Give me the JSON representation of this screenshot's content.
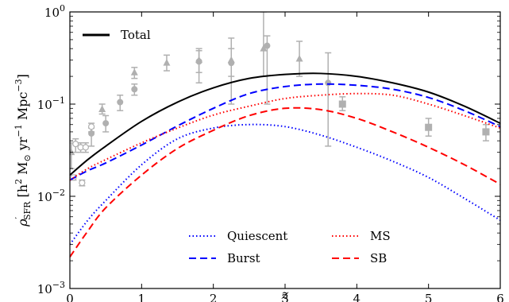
{
  "chart_data": {
    "type": "line",
    "title": "",
    "xlabel": "z",
    "ylabel": "ρ′SFR [h² M⊙ yr⁻¹ Mpc⁻³]",
    "ylabel_parts": {
      "rho": "ρ",
      "prime": "′",
      "sub": "SFR",
      "body": " [h",
      "sup2": "2",
      "msun": " M",
      "sun_sub": "⊙",
      "yr": " yr",
      "yr_exp": "−1",
      "mpc": " Mpc",
      "mpc_exp": "−3",
      "close": "]"
    },
    "xlim": [
      0,
      6
    ],
    "ylim": [
      0.001,
      1.0
    ],
    "yscale": "log",
    "x_ticks": [
      "0",
      "1",
      "2",
      "3",
      "4",
      "5",
      "6"
    ],
    "y_ticks": [
      {
        "base": "10",
        "exp": "−3"
      },
      {
        "base": "10",
        "exp": "−2"
      },
      {
        "base": "10",
        "exp": "−1"
      },
      {
        "base": "10",
        "exp": "0"
      }
    ],
    "series": [
      {
        "name": "Total",
        "color": "#000000",
        "style": "solid",
        "x": [
          0.0,
          0.25,
          0.5,
          1.0,
          1.5,
          2.0,
          2.5,
          3.0,
          3.5,
          4.0,
          4.5,
          5.0,
          5.5,
          6.0
        ],
        "y": [
          0.017,
          0.025,
          0.035,
          0.065,
          0.105,
          0.15,
          0.19,
          0.21,
          0.215,
          0.2,
          0.17,
          0.135,
          0.095,
          0.062
        ]
      },
      {
        "name": "Burst",
        "color": "#0000ff",
        "style": "dashed",
        "x": [
          0.0,
          0.25,
          0.5,
          1.0,
          1.5,
          2.0,
          2.5,
          3.0,
          3.5,
          4.0,
          4.5,
          5.0,
          5.5,
          6.0
        ],
        "y": [
          0.015,
          0.019,
          0.023,
          0.036,
          0.058,
          0.09,
          0.13,
          0.155,
          0.165,
          0.16,
          0.145,
          0.118,
          0.085,
          0.057
        ]
      },
      {
        "name": "Quiescent",
        "color": "#0000ff",
        "style": "dotted",
        "x": [
          0.0,
          0.25,
          0.5,
          1.0,
          1.5,
          2.0,
          2.5,
          3.0,
          3.5,
          4.0,
          4.5,
          5.0,
          5.5,
          6.0
        ],
        "y": [
          0.003,
          0.0055,
          0.009,
          0.022,
          0.042,
          0.055,
          0.06,
          0.057,
          0.046,
          0.034,
          0.024,
          0.016,
          0.0095,
          0.0055
        ]
      },
      {
        "name": "MS",
        "color": "#ff0000",
        "style": "dotted",
        "x": [
          0.0,
          0.25,
          0.5,
          1.0,
          1.5,
          2.0,
          2.5,
          3.0,
          3.5,
          4.0,
          4.5,
          5.0,
          5.5,
          6.0
        ],
        "y": [
          0.015,
          0.02,
          0.025,
          0.038,
          0.055,
          0.076,
          0.095,
          0.115,
          0.125,
          0.13,
          0.125,
          0.1,
          0.075,
          0.055
        ]
      },
      {
        "name": "SB",
        "color": "#ff0000",
        "style": "dashed",
        "x": [
          0.0,
          0.25,
          0.5,
          1.0,
          1.5,
          2.0,
          2.5,
          3.0,
          3.5,
          4.0,
          4.5,
          5.0,
          5.5,
          6.0
        ],
        "y": [
          0.0022,
          0.0042,
          0.0075,
          0.017,
          0.033,
          0.052,
          0.075,
          0.09,
          0.087,
          0.07,
          0.05,
          0.034,
          0.022,
          0.0135
        ]
      }
    ],
    "observations": {
      "color": "#b0b0b0",
      "points": [
        {
          "x": 0.02,
          "y": 0.03,
          "lo": 0.02,
          "hi": 0.038,
          "marker": "triangle"
        },
        {
          "x": 0.05,
          "y": 0.016,
          "lo": 0.015,
          "hi": 0.017,
          "marker": "open-circle"
        },
        {
          "x": 0.08,
          "y": 0.037,
          "lo": 0.03,
          "hi": 0.042,
          "marker": "open-circle"
        },
        {
          "x": 0.15,
          "y": 0.034,
          "lo": 0.03,
          "hi": 0.038,
          "marker": "open-circle"
        },
        {
          "x": 0.17,
          "y": 0.014,
          "lo": 0.013,
          "hi": 0.015,
          "marker": "open-circle"
        },
        {
          "x": 0.22,
          "y": 0.034,
          "lo": 0.03,
          "hi": 0.038,
          "marker": "open-circle"
        },
        {
          "x": 0.3,
          "y": 0.048,
          "lo": 0.035,
          "hi": 0.055,
          "marker": "circle"
        },
        {
          "x": 0.3,
          "y": 0.057,
          "lo": 0.05,
          "hi": 0.062,
          "marker": "open-circle"
        },
        {
          "x": 0.45,
          "y": 0.088,
          "lo": 0.078,
          "hi": 0.1,
          "marker": "triangle"
        },
        {
          "x": 0.5,
          "y": 0.062,
          "lo": 0.05,
          "hi": 0.075,
          "marker": "circle"
        },
        {
          "x": 0.7,
          "y": 0.105,
          "lo": 0.085,
          "hi": 0.125,
          "marker": "circle"
        },
        {
          "x": 0.9,
          "y": 0.22,
          "lo": 0.19,
          "hi": 0.25,
          "marker": "triangle"
        },
        {
          "x": 0.9,
          "y": 0.145,
          "lo": 0.125,
          "hi": 0.165,
          "marker": "circle"
        },
        {
          "x": 1.35,
          "y": 0.28,
          "lo": 0.23,
          "hi": 0.34,
          "marker": "triangle"
        },
        {
          "x": 1.8,
          "y": 0.3,
          "lo": 0.22,
          "hi": 0.4,
          "marker": "triangle"
        },
        {
          "x": 1.8,
          "y": 0.29,
          "lo": 0.17,
          "hi": 0.38,
          "marker": "circle"
        },
        {
          "x": 2.25,
          "y": 0.3,
          "lo": 0.2,
          "hi": 0.52,
          "marker": "triangle"
        },
        {
          "x": 2.25,
          "y": 0.28,
          "lo": 0.1,
          "hi": 0.4,
          "marker": "circle"
        },
        {
          "x": 2.7,
          "y": 0.4,
          "lo": 0.2,
          "hi": 1.0,
          "marker": "triangle"
        },
        {
          "x": 2.75,
          "y": 0.43,
          "lo": 0.1,
          "hi": 0.55,
          "marker": "circle"
        },
        {
          "x": 3.2,
          "y": 0.31,
          "lo": 0.2,
          "hi": 0.48,
          "marker": "triangle"
        },
        {
          "x": 3.6,
          "y": 0.17,
          "lo": 0.035,
          "hi": 0.36,
          "marker": "circle"
        },
        {
          "x": 3.8,
          "y": 0.1,
          "lo": 0.085,
          "hi": 0.12,
          "marker": "square"
        },
        {
          "x": 5.0,
          "y": 0.056,
          "lo": 0.045,
          "hi": 0.07,
          "marker": "square"
        },
        {
          "x": 5.8,
          "y": 0.05,
          "lo": 0.04,
          "hi": 0.06,
          "marker": "square"
        }
      ]
    },
    "legends": [
      {
        "position": "top-left",
        "entries": [
          "Total"
        ]
      },
      {
        "position": "bottom-center",
        "columns": [
          [
            "Quiescent",
            "Burst"
          ],
          [
            "MS",
            "SB"
          ]
        ]
      }
    ]
  }
}
